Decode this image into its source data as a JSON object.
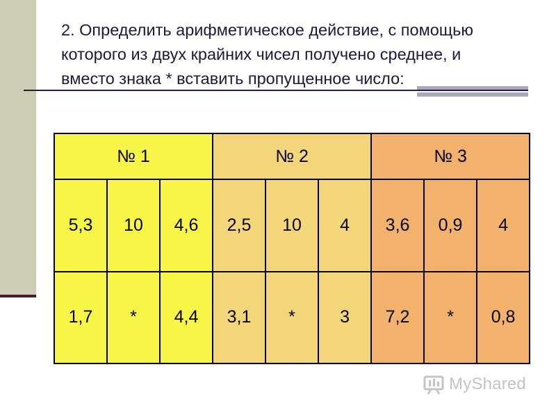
{
  "title_lines": [
    "2. Определить арифметическое действие, с помощью",
    "которого из двух крайних чисел получено среднее, и",
    "вместо знака *  вставить пропущенное число:"
  ],
  "table": {
    "headers": [
      "№ 1",
      "№ 2",
      "№ 3"
    ],
    "rows": [
      [
        "5,3",
        "10",
        "4,6",
        "2,5",
        "10",
        "4",
        "3,6",
        "0,9",
        "4"
      ],
      [
        "1,7",
        "*",
        "4,4",
        "3,1",
        "*",
        "3",
        "7,2",
        "*",
        "0,8"
      ]
    ],
    "group_colors": [
      "#f6f548",
      "#f4d67a",
      "#f2b16d"
    ]
  },
  "watermark": {
    "text": "MyShared",
    "icon": "myshared-logo-icon"
  }
}
